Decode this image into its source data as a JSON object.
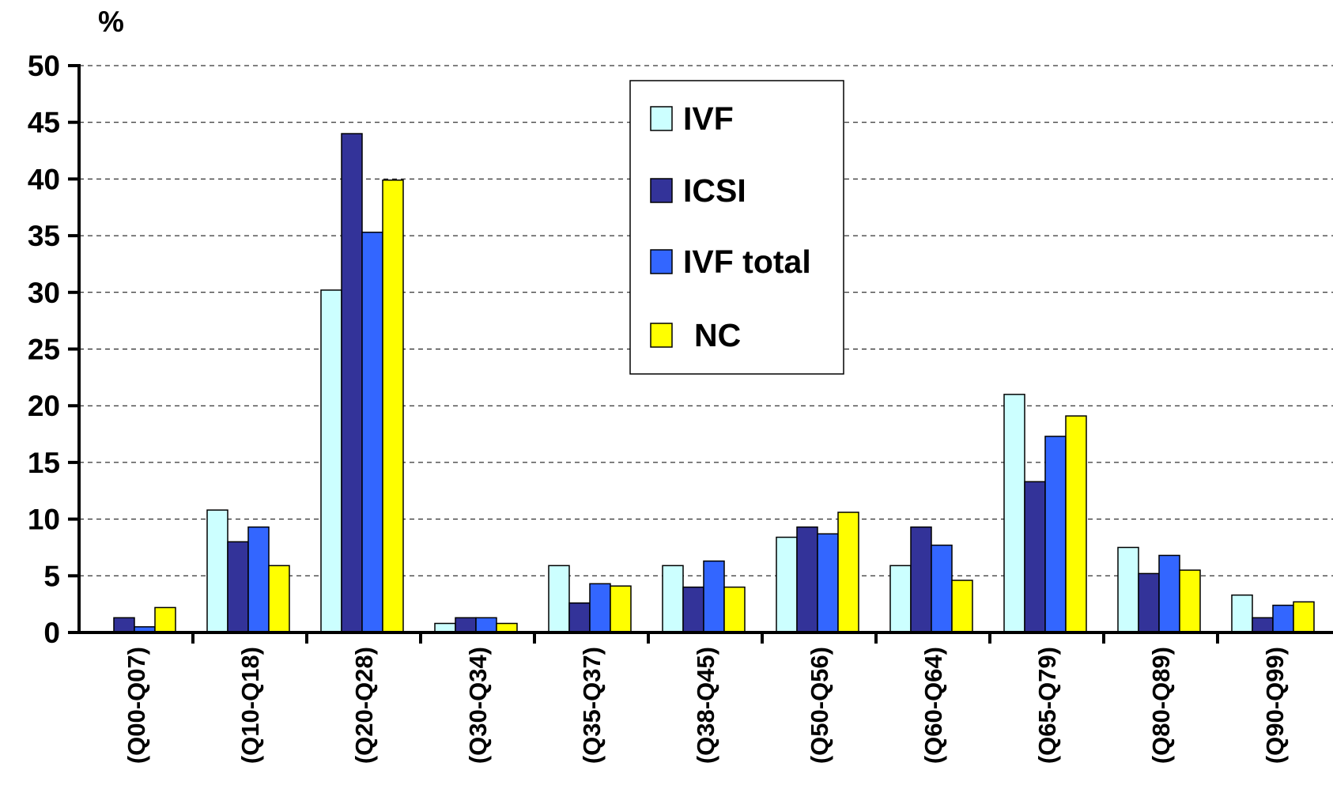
{
  "chart_data": {
    "type": "bar",
    "title": "",
    "xlabel": "",
    "ylabel": "%",
    "ylim": [
      0,
      50
    ],
    "yticks": [
      0,
      5,
      10,
      15,
      20,
      25,
      30,
      35,
      40,
      45,
      50
    ],
    "grid": true,
    "legend_position": "top-center",
    "categories": [
      "(Q00-Q07)",
      "(Q10-Q18)",
      "(Q20-Q28)",
      "(Q30-Q34)",
      "(Q35-Q37)",
      "(Q38-Q45)",
      "(Q50-Q56)",
      "(Q60-Q64)",
      "(Q65-Q79)",
      "(Q80-Q89)",
      "(Q90-Q99)"
    ],
    "series": [
      {
        "name": "IVF",
        "color": "#CCFFFF",
        "values": [
          0,
          10.8,
          30.2,
          0.8,
          5.9,
          5.9,
          8.4,
          5.9,
          21.0,
          7.5,
          3.3
        ]
      },
      {
        "name": "ICSI",
        "color": "#333399",
        "values": [
          1.3,
          8.0,
          44.0,
          1.3,
          2.6,
          4.0,
          9.3,
          9.3,
          13.3,
          5.2,
          1.3
        ]
      },
      {
        "name": "IVF total",
        "color": "#3366FF",
        "values": [
          0.5,
          9.3,
          35.3,
          1.3,
          4.3,
          6.3,
          8.7,
          7.7,
          17.3,
          6.8,
          2.4
        ]
      },
      {
        "name": "NC",
        "color": "#FFFF00",
        "values": [
          2.2,
          5.9,
          39.9,
          0.8,
          4.1,
          4.0,
          10.6,
          4.6,
          19.1,
          5.5,
          2.7
        ]
      }
    ]
  }
}
